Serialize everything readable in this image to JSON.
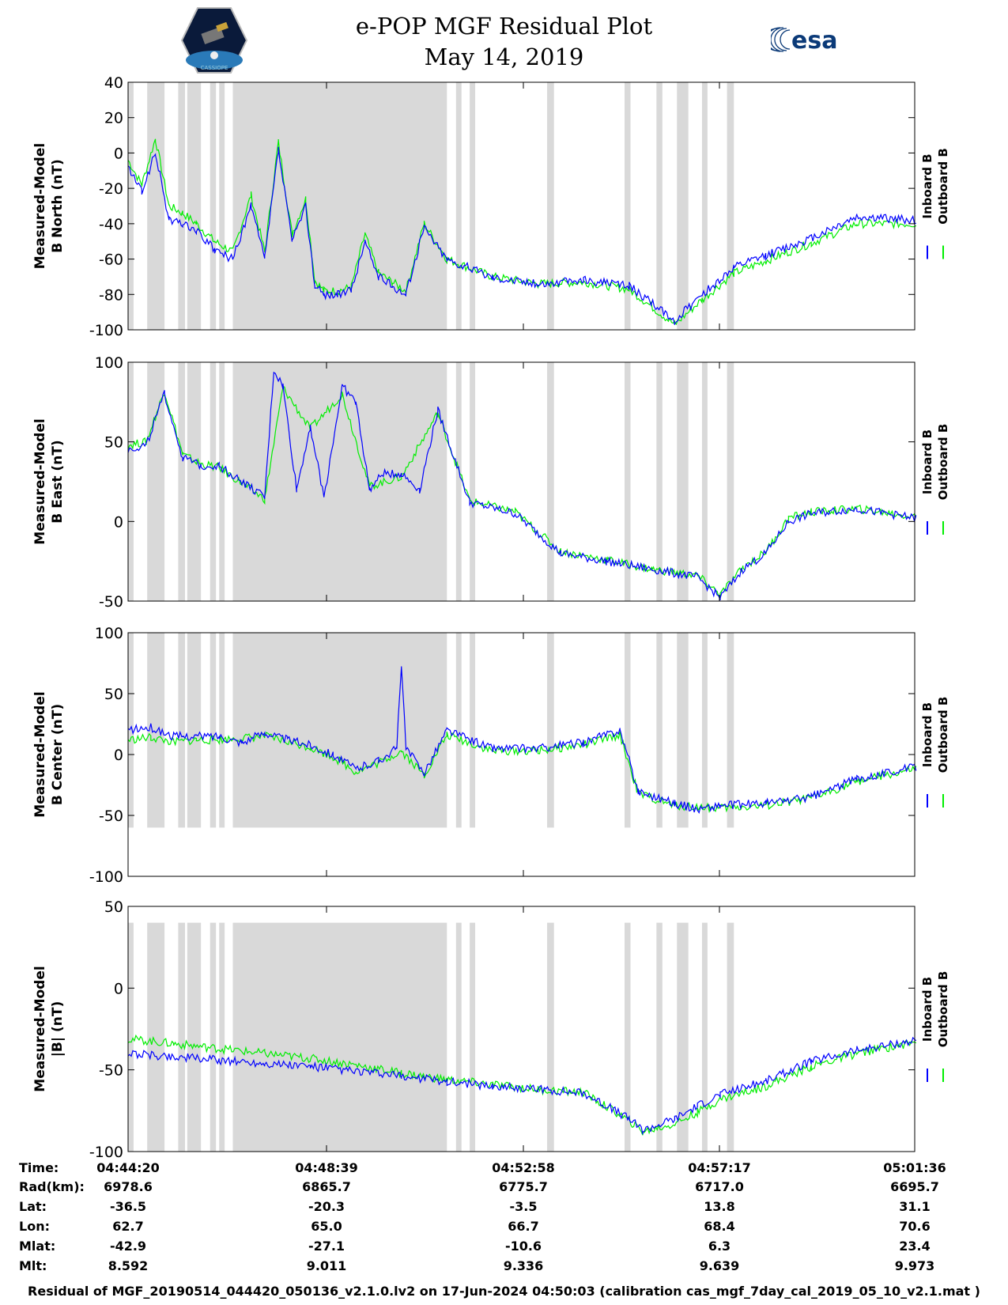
{
  "header": {
    "title": "e-POP MGF Residual Plot",
    "date": "May 14, 2019",
    "logo_left_text": "CASSIOPE",
    "logo_right_text": "esa"
  },
  "chart_data": [
    {
      "type": "line",
      "ylabel": [
        "Measured-Model",
        "B North (nT)"
      ],
      "ylim": [
        -100,
        40
      ],
      "yticks": [
        40,
        20,
        0,
        -20,
        -40,
        -60,
        -80,
        -100
      ],
      "legend": [
        "Inboard B",
        "Outboard B"
      ],
      "series": [
        {
          "name": "Inboard B",
          "color": "#0000ff",
          "x": [
            0,
            0.3,
            0.6,
            0.9,
            1.2,
            1.5,
            1.9,
            2.3,
            2.7,
            3.0,
            3.3,
            3.6,
            3.9,
            4.1,
            4.3,
            4.6,
            4.9,
            5.2,
            5.5,
            5.8,
            6.1,
            6.5,
            7.0,
            8.0,
            9.0,
            10.0,
            11.0,
            12.0,
            12.6,
            13.3,
            14.0,
            15.0,
            16.0,
            17.3
          ],
          "y": [
            -8,
            -22,
            0,
            -38,
            -40,
            -44,
            -55,
            -60,
            -30,
            -60,
            2,
            -50,
            -30,
            -75,
            -80,
            -80,
            -78,
            -50,
            -70,
            -75,
            -80,
            -42,
            -60,
            -70,
            -74,
            -72,
            -75,
            -95,
            -80,
            -65,
            -58,
            -48,
            -36,
            -38
          ]
        },
        {
          "name": "Outboard B",
          "color": "#00ee00",
          "x": [
            0,
            0.3,
            0.6,
            0.9,
            1.2,
            1.5,
            1.9,
            2.3,
            2.7,
            3.0,
            3.3,
            3.6,
            3.9,
            4.1,
            4.3,
            4.6,
            4.9,
            5.2,
            5.5,
            5.8,
            6.1,
            6.5,
            7.0,
            8.0,
            9.0,
            10.0,
            11.0,
            12.0,
            12.6,
            13.3,
            14.0,
            15.0,
            16.0,
            17.3
          ],
          "y": [
            -4,
            -18,
            8,
            -30,
            -34,
            -40,
            -50,
            -56,
            -24,
            -56,
            6,
            -46,
            -26,
            -72,
            -78,
            -78,
            -76,
            -46,
            -68,
            -73,
            -78,
            -40,
            -60,
            -70,
            -74,
            -73,
            -77,
            -97,
            -83,
            -68,
            -61,
            -51,
            -40,
            -40
          ]
        }
      ]
    },
    {
      "type": "line",
      "ylabel": [
        "Measured-Model",
        "B East (nT)"
      ],
      "ylim": [
        -50,
        100
      ],
      "yticks": [
        100,
        50,
        0,
        -50
      ],
      "legend": [
        "Inboard B",
        "Outboard B"
      ],
      "series": [
        {
          "name": "Inboard B",
          "color": "#0000ff",
          "x": [
            0,
            0.4,
            0.8,
            1.2,
            1.6,
            2.0,
            2.5,
            3.0,
            3.2,
            3.4,
            3.7,
            4.0,
            4.3,
            4.7,
            5.0,
            5.3,
            5.6,
            6.0,
            6.4,
            6.8,
            7.5,
            8.5,
            9.5,
            10.5,
            11.5,
            12.5,
            13.0,
            13.5,
            14.0,
            14.5,
            15.0,
            16.0,
            17.3
          ],
          "y": [
            45,
            48,
            80,
            40,
            35,
            35,
            25,
            15,
            95,
            85,
            20,
            60,
            15,
            85,
            75,
            20,
            30,
            30,
            20,
            70,
            12,
            5,
            -20,
            -25,
            -30,
            -35,
            -48,
            -30,
            -20,
            0,
            5,
            8,
            2
          ]
        },
        {
          "name": "Outboard B",
          "color": "#00ee00",
          "x": [
            0,
            0.4,
            0.8,
            1.2,
            1.6,
            2.0,
            2.5,
            3.0,
            3.4,
            4.0,
            4.7,
            5.3,
            6.0,
            6.8,
            7.5,
            8.5,
            9.5,
            10.5,
            11.5,
            12.5,
            13.0,
            13.5,
            14.0,
            14.5,
            15.0,
            16.0,
            17.3
          ],
          "y": [
            48,
            50,
            82,
            42,
            36,
            34,
            24,
            14,
            84,
            58,
            80,
            22,
            28,
            68,
            13,
            6,
            -19,
            -24,
            -30,
            -34,
            -46,
            -29,
            -19,
            2,
            6,
            8,
            3
          ]
        }
      ]
    },
    {
      "type": "line",
      "ylabel": [
        "Measured-Model",
        "B Center (nT)"
      ],
      "ylim": [
        -100,
        100
      ],
      "yticks": [
        100,
        50,
        0,
        -50,
        -100
      ],
      "legend": [
        "Inboard B",
        "Outboard B"
      ],
      "series": [
        {
          "name": "Inboard B",
          "color": "#0000ff",
          "x": [
            0,
            0.5,
            1.0,
            1.5,
            2.0,
            2.5,
            3.0,
            3.5,
            4.0,
            4.5,
            5.0,
            5.5,
            5.9,
            6.0,
            6.1,
            6.5,
            7.0,
            8.0,
            9.0,
            10.0,
            10.8,
            11.2,
            12.0,
            12.5,
            13.0,
            14.0,
            15.0,
            16.0,
            17.3
          ],
          "y": [
            20,
            22,
            15,
            15,
            15,
            10,
            18,
            12,
            8,
            0,
            -12,
            -5,
            5,
            75,
            5,
            -15,
            20,
            5,
            5,
            10,
            20,
            -30,
            -40,
            -45,
            -42,
            -40,
            -35,
            -20,
            -10
          ]
        },
        {
          "name": "Outboard B",
          "color": "#00ee00",
          "x": [
            0,
            0.5,
            1.0,
            1.5,
            2.0,
            3.0,
            4.0,
            4.5,
            5.0,
            5.5,
            6.0,
            6.5,
            7.0,
            8.0,
            9.0,
            10.0,
            10.8,
            11.2,
            12.0,
            13.0,
            14.0,
            15.0,
            16.0,
            17.3
          ],
          "y": [
            12,
            14,
            10,
            12,
            12,
            15,
            6,
            -2,
            -14,
            -7,
            3,
            -17,
            16,
            3,
            3,
            8,
            16,
            -32,
            -42,
            -44,
            -42,
            -36,
            -22,
            -12
          ]
        }
      ]
    },
    {
      "type": "line",
      "ylabel": [
        "Measured-Model",
        "|B| (nT)"
      ],
      "ylim": [
        -100,
        50
      ],
      "yticks": [
        50,
        0,
        -50,
        -100
      ],
      "legend": [
        "Inboard B",
        "Outboard B"
      ],
      "series": [
        {
          "name": "Inboard B",
          "color": "#0000ff",
          "x": [
            0,
            1,
            2,
            3,
            4,
            5,
            6,
            7,
            8,
            9,
            10,
            11,
            11.3,
            12,
            12.5,
            13,
            14,
            15,
            16,
            17.3
          ],
          "y": [
            -40,
            -42,
            -44,
            -46,
            -48,
            -51,
            -54,
            -57,
            -60,
            -62,
            -64,
            -80,
            -87,
            -80,
            -72,
            -65,
            -57,
            -45,
            -38,
            -32
          ]
        },
        {
          "name": "Outboard B",
          "color": "#00ee00",
          "x": [
            0,
            1,
            2,
            3,
            4,
            5,
            6,
            7,
            8,
            9,
            10,
            11,
            11.3,
            12,
            12.5,
            13,
            14,
            15,
            16,
            17.3
          ],
          "y": [
            -31,
            -34,
            -37,
            -40,
            -43,
            -47,
            -52,
            -56,
            -59,
            -62,
            -64,
            -81,
            -88,
            -83,
            -76,
            -68,
            -60,
            -48,
            -40,
            -33
          ]
        }
      ]
    }
  ],
  "shaded_intervals": [
    [
      0.0,
      0.12
    ],
    [
      0.42,
      0.8
    ],
    [
      1.1,
      1.25
    ],
    [
      1.3,
      1.6
    ],
    [
      1.8,
      1.93
    ],
    [
      2.0,
      2.12
    ],
    [
      2.3,
      7.0
    ],
    [
      7.2,
      7.32
    ],
    [
      7.5,
      7.62
    ],
    [
      9.2,
      9.35
    ],
    [
      10.9,
      11.03
    ],
    [
      11.6,
      11.73
    ],
    [
      12.05,
      12.3
    ],
    [
      12.6,
      12.72
    ],
    [
      13.15,
      13.3
    ]
  ],
  "info_table": {
    "labels": [
      "Time:",
      "Rad(km):",
      "Lat:",
      "Lon:",
      "Mlat:",
      "Mlt:"
    ],
    "columns": [
      {
        "values": [
          "04:44:20",
          "6978.6",
          "-36.5",
          "62.7",
          "-42.9",
          "8.592"
        ]
      },
      {
        "values": [
          "04:48:39",
          "6865.7",
          "-20.3",
          "65.0",
          "-27.1",
          "9.011"
        ]
      },
      {
        "values": [
          "04:52:58",
          "6775.7",
          "-3.5",
          "66.7",
          "-10.6",
          "9.336"
        ]
      },
      {
        "values": [
          "04:57:17",
          "6717.0",
          "13.8",
          "68.4",
          "6.3",
          "9.639"
        ]
      },
      {
        "values": [
          "05:01:36",
          "6695.7",
          "31.1",
          "70.6",
          "23.4",
          "9.973"
        ]
      }
    ]
  },
  "footer": "Residual of MGF_20190514_044420_050136_v2.1.0.lv2 on 17-Jun-2024 04:50:03 (calibration cas_mgf_7day_cal_2019_05_10_v2.1.mat )"
}
